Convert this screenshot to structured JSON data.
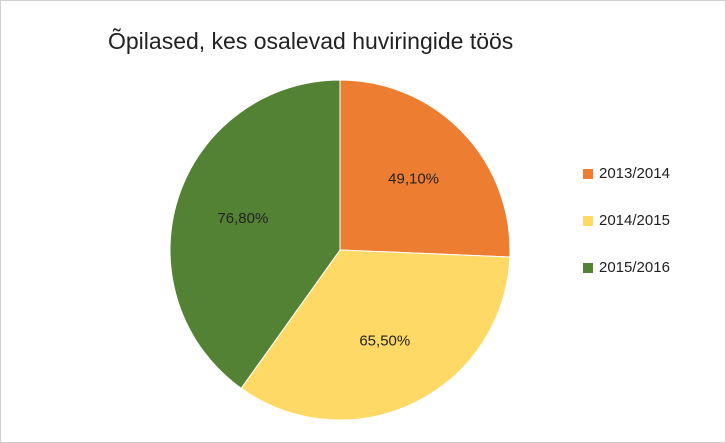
{
  "chart_data": {
    "type": "pie",
    "title": "Õpilased, kes osalevad huviringide töös",
    "categories": [
      "2013/2014",
      "2014/2015",
      "2015/2016"
    ],
    "values": [
      49.1,
      65.5,
      76.8
    ],
    "value_labels": [
      "49,10%",
      "65,50%",
      "76,80%"
    ],
    "colors": [
      "#ed7d31",
      "#ffd966",
      "#548235"
    ],
    "legend": "right"
  }
}
